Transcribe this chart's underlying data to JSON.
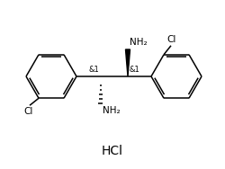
{
  "bg_color": "#ffffff",
  "line_color": "#000000",
  "text_color": "#000000",
  "hcl_label": "HCl",
  "nh2_label": "NH₂",
  "cl_label": "Cl",
  "and1_label": "&1",
  "font_size_label": 6.0,
  "font_size_hcl": 10,
  "font_size_cl": 7.5,
  "font_size_nh2": 7.5,
  "lw": 1.1
}
